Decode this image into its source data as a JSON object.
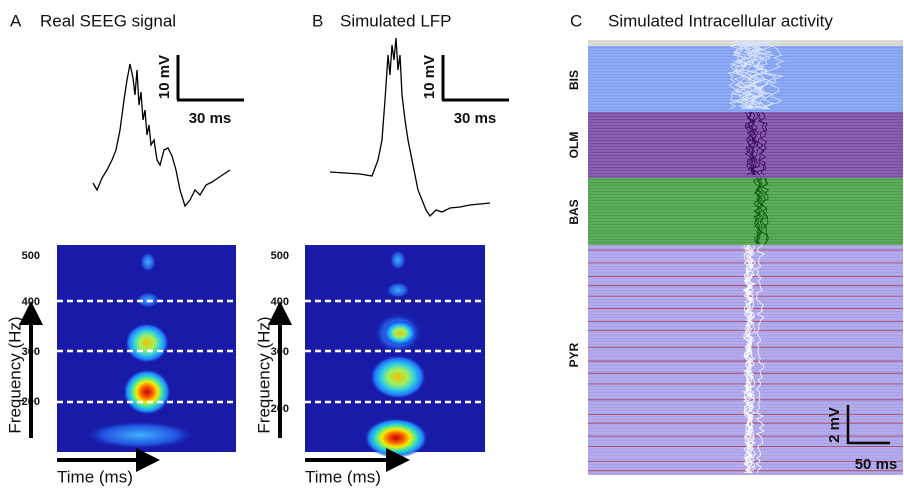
{
  "panels": [
    {
      "letter": "A",
      "title": "Real SEEG signal",
      "scale": {
        "amplitude": "10 mV",
        "time": "30 ms"
      },
      "spectrogram": {
        "yticks": [
          500,
          400,
          300,
          200
        ],
        "ylabel": "Frequency (Hz)",
        "xlabel": "Time (ms)"
      }
    },
    {
      "letter": "B",
      "title": "Simulated LFP",
      "scale": {
        "amplitude": "10 mV",
        "time": "30 ms"
      },
      "spectrogram": {
        "yticks": [
          500,
          400,
          300,
          200
        ],
        "ylabel": "Frequency (Hz)",
        "xlabel": "Time (ms)"
      }
    },
    {
      "letter": "C",
      "title": "Simulated Intracellular activity",
      "populations": [
        "BIS",
        "OLM",
        "BAS",
        "PYR"
      ],
      "scale": {
        "amplitude": "2 mV",
        "time": "50 ms"
      }
    }
  ]
}
